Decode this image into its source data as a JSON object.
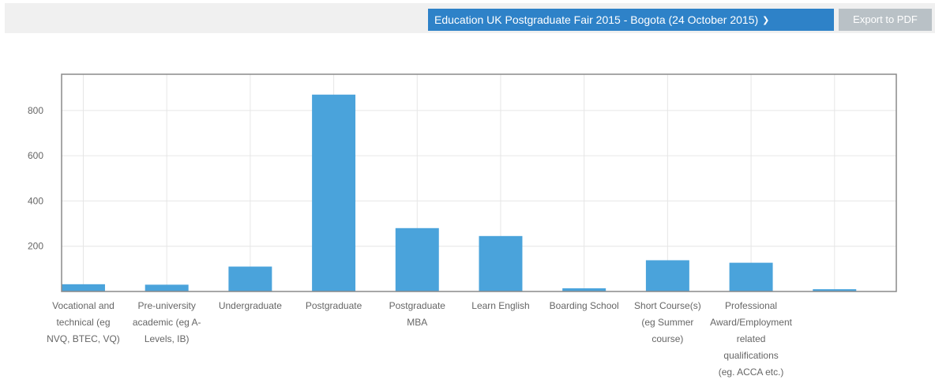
{
  "toolbar": {
    "event_selector_label": "Education UK Postgraduate Fair 2015 - Bogota (24 October 2015)",
    "export_label": "Export to PDF"
  },
  "colors": {
    "bar": "#4aa3db",
    "accent": "#2e82c8",
    "export_button": "#b9c1c6"
  },
  "icons": {
    "dropdown": "chevron-down-icon"
  },
  "chart_data": {
    "type": "bar",
    "title": "",
    "xlabel": "",
    "ylabel": "",
    "ylim": [
      0,
      960
    ],
    "yticks": [
      200,
      400,
      600,
      800
    ],
    "grid": true,
    "categories": [
      [
        "Vocational and",
        "technical (eg",
        "NVQ, BTEC, VQ)"
      ],
      [
        "Pre-university",
        "academic (eg A-",
        "Levels, IB)"
      ],
      [
        "Undergraduate"
      ],
      [
        "Postgraduate"
      ],
      [
        "Postgraduate",
        "MBA"
      ],
      [
        "Learn English"
      ],
      [
        "Boarding School"
      ],
      [
        "Short Course(s)",
        "(eg Summer",
        "course)"
      ],
      [
        "Professional",
        "Award/Employment",
        "related",
        "qualifications",
        "(eg. ACCA etc.)"
      ],
      []
    ],
    "values": [
      32,
      30,
      110,
      870,
      280,
      245,
      14,
      138,
      127,
      10
    ]
  }
}
